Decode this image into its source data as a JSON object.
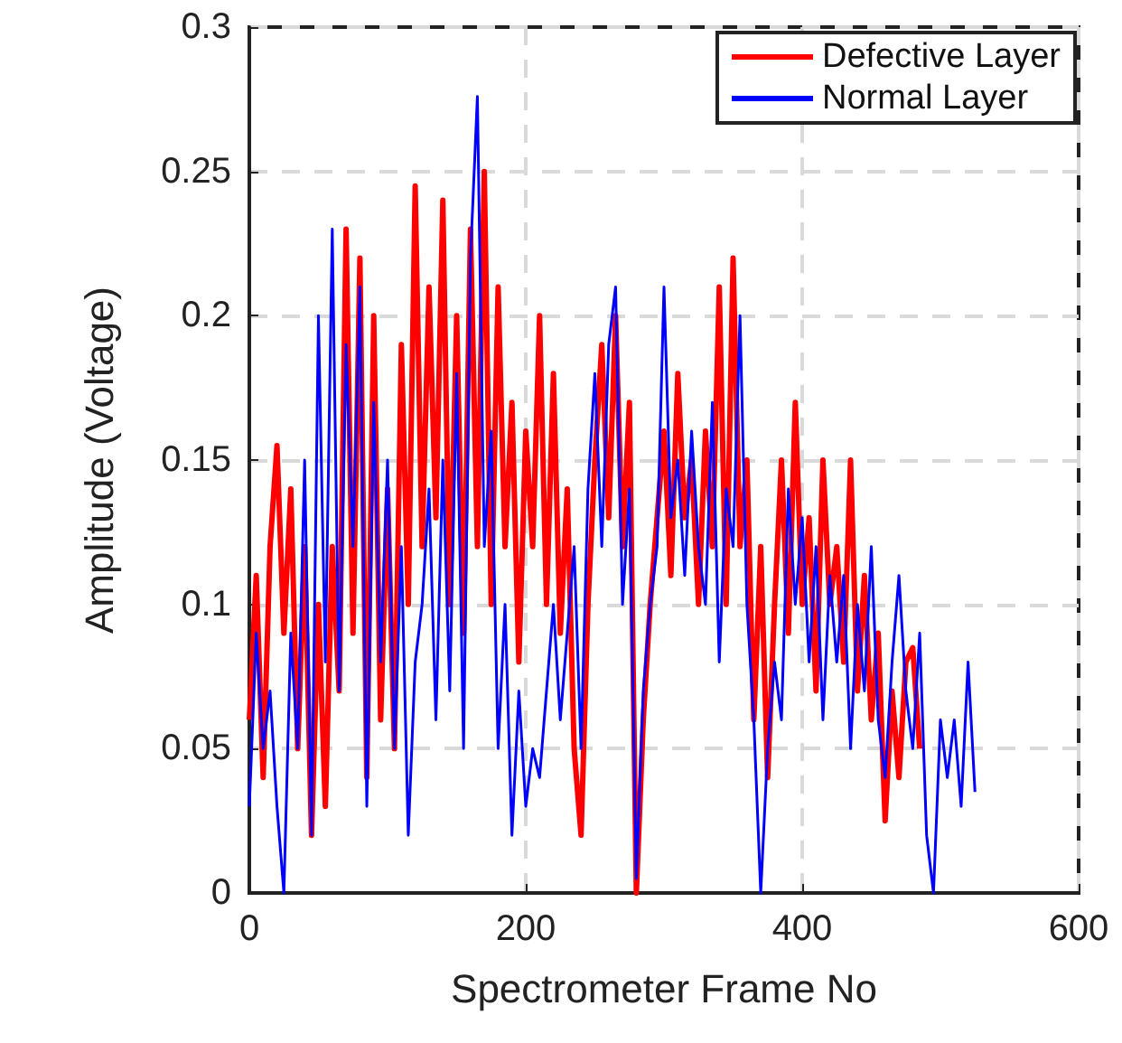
{
  "chart_data": {
    "type": "line",
    "xlabel": "Spectrometer Frame No",
    "ylabel": "Amplitude (Voltage)",
    "xlim": [
      0,
      600
    ],
    "xticks": [
      0,
      200,
      400,
      600
    ],
    "ylim": [
      0,
      0.3
    ],
    "yticks": [
      0,
      0.05,
      0.1,
      0.15,
      0.2,
      0.25,
      0.3
    ],
    "grid": true,
    "legend": "top right",
    "marker": "none",
    "series": [
      {
        "name": "Defective Layer",
        "color": "#ff0000",
        "x": [
          0,
          5,
          10,
          15,
          20,
          25,
          30,
          35,
          40,
          45,
          50,
          55,
          60,
          65,
          70,
          75,
          80,
          85,
          90,
          95,
          100,
          105,
          110,
          115,
          120,
          125,
          130,
          135,
          140,
          145,
          150,
          155,
          160,
          165,
          170,
          175,
          180,
          185,
          190,
          195,
          200,
          205,
          210,
          215,
          220,
          225,
          230,
          235,
          240,
          245,
          250,
          255,
          260,
          265,
          270,
          275,
          280,
          285,
          290,
          295,
          300,
          305,
          310,
          315,
          320,
          325,
          330,
          335,
          340,
          345,
          350,
          355,
          360,
          365,
          370,
          375,
          380,
          385,
          390,
          395,
          400,
          405,
          410,
          415,
          420,
          425,
          430,
          435,
          440,
          445,
          450,
          455,
          460,
          465,
          470,
          475,
          480,
          485
        ],
        "values": [
          0.06,
          0.11,
          0.04,
          0.12,
          0.155,
          0.09,
          0.14,
          0.05,
          0.12,
          0.02,
          0.1,
          0.03,
          0.12,
          0.07,
          0.23,
          0.09,
          0.22,
          0.04,
          0.2,
          0.06,
          0.14,
          0.05,
          0.19,
          0.1,
          0.245,
          0.12,
          0.21,
          0.13,
          0.24,
          0.1,
          0.2,
          0.09,
          0.23,
          0.12,
          0.25,
          0.1,
          0.21,
          0.12,
          0.17,
          0.08,
          0.16,
          0.12,
          0.2,
          0.1,
          0.18,
          0.09,
          0.14,
          0.05,
          0.02,
          0.1,
          0.15,
          0.19,
          0.13,
          0.2,
          0.12,
          0.17,
          0.0,
          0.06,
          0.1,
          0.13,
          0.16,
          0.11,
          0.18,
          0.13,
          0.15,
          0.1,
          0.16,
          0.12,
          0.21,
          0.1,
          0.22,
          0.12,
          0.15,
          0.06,
          0.12,
          0.04,
          0.1,
          0.15,
          0.09,
          0.17,
          0.1,
          0.13,
          0.07,
          0.15,
          0.1,
          0.12,
          0.08,
          0.15,
          0.07,
          0.11,
          0.06,
          0.09,
          0.025,
          0.07,
          0.04,
          0.08,
          0.085,
          0.05
        ]
      },
      {
        "name": "Normal Layer",
        "color": "#0000ff",
        "x": [
          0,
          5,
          10,
          15,
          20,
          25,
          30,
          35,
          40,
          45,
          50,
          55,
          60,
          65,
          70,
          75,
          80,
          85,
          90,
          95,
          100,
          105,
          110,
          115,
          120,
          125,
          130,
          135,
          140,
          145,
          150,
          155,
          160,
          165,
          170,
          175,
          180,
          185,
          190,
          195,
          200,
          205,
          210,
          215,
          220,
          225,
          230,
          235,
          240,
          245,
          250,
          255,
          260,
          265,
          270,
          275,
          280,
          285,
          290,
          295,
          300,
          305,
          310,
          315,
          320,
          325,
          330,
          335,
          340,
          345,
          350,
          355,
          360,
          365,
          370,
          375,
          380,
          385,
          390,
          395,
          400,
          405,
          410,
          415,
          420,
          425,
          430,
          435,
          440,
          445,
          450,
          455,
          460,
          465,
          470,
          475,
          480,
          485,
          490,
          495,
          500,
          505,
          510,
          515,
          520,
          525
        ],
        "values": [
          0.03,
          0.09,
          0.05,
          0.07,
          0.03,
          0.0,
          0.09,
          0.05,
          0.15,
          0.02,
          0.2,
          0.08,
          0.23,
          0.07,
          0.19,
          0.12,
          0.21,
          0.03,
          0.17,
          0.08,
          0.15,
          0.05,
          0.12,
          0.02,
          0.08,
          0.1,
          0.14,
          0.06,
          0.15,
          0.07,
          0.18,
          0.05,
          0.22,
          0.276,
          0.12,
          0.16,
          0.05,
          0.1,
          0.02,
          0.07,
          0.03,
          0.05,
          0.04,
          0.07,
          0.1,
          0.06,
          0.09,
          0.12,
          0.05,
          0.14,
          0.18,
          0.12,
          0.19,
          0.21,
          0.1,
          0.14,
          0.005,
          0.07,
          0.1,
          0.12,
          0.21,
          0.13,
          0.15,
          0.11,
          0.16,
          0.12,
          0.1,
          0.17,
          0.08,
          0.14,
          0.12,
          0.2,
          0.1,
          0.06,
          0.0,
          0.05,
          0.08,
          0.06,
          0.14,
          0.1,
          0.13,
          0.08,
          0.12,
          0.06,
          0.11,
          0.08,
          0.11,
          0.05,
          0.1,
          0.07,
          0.12,
          0.06,
          0.04,
          0.08,
          0.11,
          0.07,
          0.05,
          0.09,
          0.02,
          0.0,
          0.06,
          0.04,
          0.06,
          0.03,
          0.08,
          0.035
        ]
      }
    ]
  }
}
